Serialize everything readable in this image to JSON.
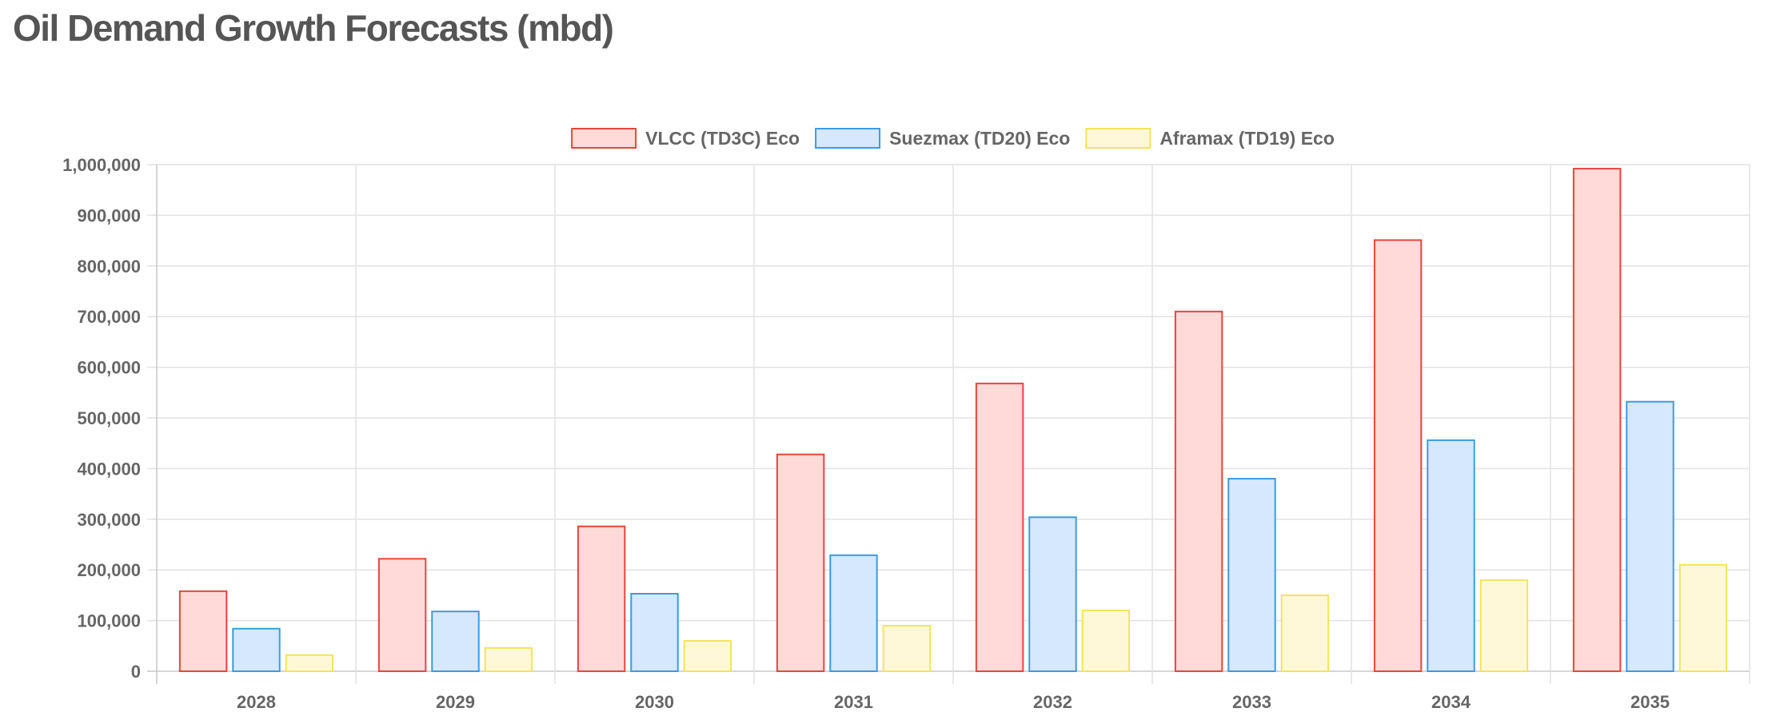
{
  "page": {
    "title": "Oil Demand Growth Forecasts (mbd)"
  },
  "chart_data": {
    "type": "bar",
    "categories": [
      "2028",
      "2029",
      "2030",
      "2031",
      "2032",
      "2033",
      "2034",
      "2035"
    ],
    "series": [
      {
        "name": "VLCC (TD3C) Eco",
        "values": [
          158000,
          222000,
          286000,
          428000,
          568000,
          710000,
          851000,
          992000
        ],
        "fill": "#ffdad9",
        "stroke": "#e8463b"
      },
      {
        "name": "Suezmax (TD20) Eco",
        "values": [
          84000,
          118000,
          153000,
          229000,
          304000,
          380000,
          456000,
          532000
        ],
        "fill": "#d5e8fd",
        "stroke": "#3d9be0"
      },
      {
        "name": "Aframax (TD19) Eco",
        "values": [
          32000,
          46000,
          60000,
          90000,
          120000,
          150000,
          180000,
          210000
        ],
        "fill": "#fff8d8",
        "stroke": "#f4e45a"
      }
    ],
    "y_ticks": [
      "0",
      "100,000",
      "200,000",
      "300,000",
      "400,000",
      "500,000",
      "600,000",
      "700,000",
      "800,000",
      "900,000",
      "1,000,000"
    ],
    "ylim": [
      0,
      1000000
    ],
    "xlabel": "",
    "ylabel": "",
    "grid": true,
    "legend_position": "top-center"
  }
}
